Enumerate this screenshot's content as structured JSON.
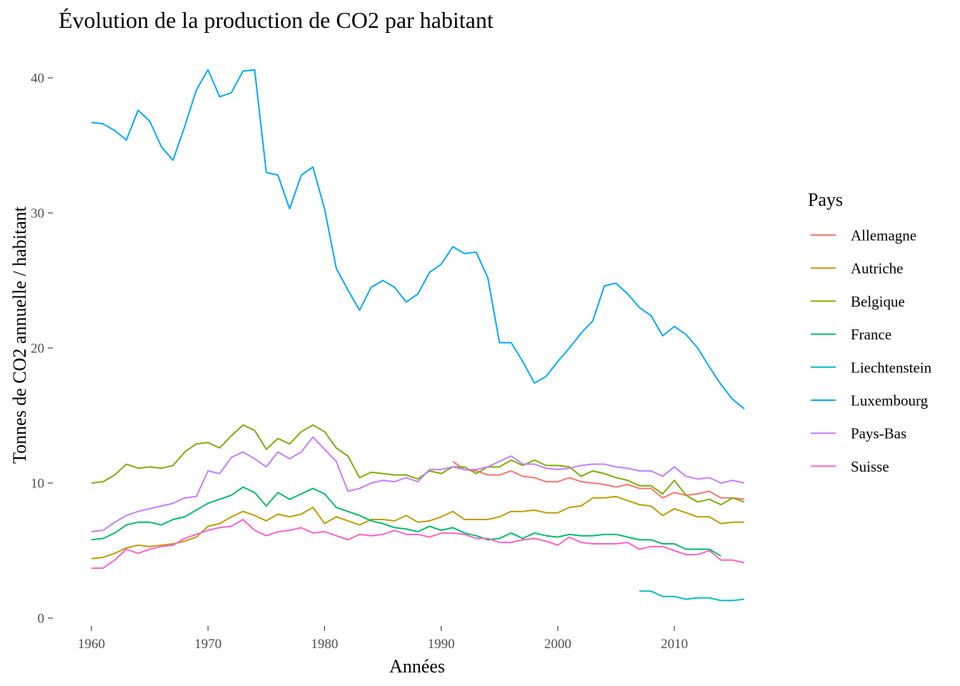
{
  "chart_data": {
    "type": "line",
    "title": "Évolution de la production de CO2 par habitant",
    "xlabel": "Années",
    "ylabel": "Tonnes de CO2 annuelle / habitant",
    "xlim": [
      1960,
      2016
    ],
    "ylim": [
      0,
      41
    ],
    "x_ticks": [
      1960,
      1970,
      1980,
      1990,
      2000,
      2010
    ],
    "y_ticks": [
      0,
      10,
      20,
      30,
      40
    ],
    "grid": false,
    "legend": {
      "title": "Pays",
      "position": "right"
    },
    "series": [
      {
        "name": "Allemagne",
        "color": "#F8766D",
        "x": [
          1991,
          1992,
          1993,
          1994,
          1995,
          1996,
          1997,
          1998,
          1999,
          2000,
          2001,
          2002,
          2003,
          2004,
          2005,
          2006,
          2007,
          2008,
          2009,
          2010,
          2011,
          2012,
          2013,
          2014,
          2015,
          2016
        ],
        "values": [
          11.6,
          11.0,
          10.9,
          10.6,
          10.6,
          10.9,
          10.5,
          10.4,
          10.1,
          10.1,
          10.4,
          10.1,
          10.0,
          9.9,
          9.7,
          9.9,
          9.6,
          9.6,
          8.9,
          9.3,
          9.1,
          9.2,
          9.4,
          8.9,
          8.9,
          8.8
        ]
      },
      {
        "name": "Autriche",
        "color": "#C49A00",
        "x": [
          1960,
          1961,
          1962,
          1963,
          1964,
          1965,
          1966,
          1967,
          1968,
          1969,
          1970,
          1971,
          1972,
          1973,
          1974,
          1975,
          1976,
          1977,
          1978,
          1979,
          1980,
          1981,
          1982,
          1983,
          1984,
          1985,
          1986,
          1987,
          1988,
          1989,
          1990,
          1991,
          1992,
          1993,
          1994,
          1995,
          1996,
          1997,
          1998,
          1999,
          2000,
          2001,
          2002,
          2003,
          2004,
          2005,
          2006,
          2007,
          2008,
          2009,
          2010,
          2011,
          2012,
          2013,
          2014,
          2015,
          2016
        ],
        "values": [
          4.4,
          4.5,
          4.8,
          5.2,
          5.4,
          5.3,
          5.4,
          5.5,
          5.7,
          6.0,
          6.8,
          7.0,
          7.5,
          7.9,
          7.6,
          7.2,
          7.7,
          7.5,
          7.7,
          8.2,
          7.0,
          7.5,
          7.2,
          6.9,
          7.3,
          7.3,
          7.2,
          7.6,
          7.1,
          7.2,
          7.5,
          7.9,
          7.3,
          7.3,
          7.3,
          7.5,
          7.9,
          7.9,
          8.0,
          7.8,
          7.8,
          8.2,
          8.3,
          8.9,
          8.9,
          9.0,
          8.7,
          8.4,
          8.3,
          7.6,
          8.1,
          7.8,
          7.5,
          7.5,
          7.0,
          7.1,
          7.1
        ]
      },
      {
        "name": "Belgique",
        "color": "#7CAE00",
        "x": [
          1960,
          1961,
          1962,
          1963,
          1964,
          1965,
          1966,
          1967,
          1968,
          1969,
          1970,
          1971,
          1972,
          1973,
          1974,
          1975,
          1976,
          1977,
          1978,
          1979,
          1980,
          1981,
          1982,
          1983,
          1984,
          1985,
          1986,
          1987,
          1988,
          1989,
          1990,
          1991,
          1992,
          1993,
          1994,
          1995,
          1996,
          1997,
          1998,
          1999,
          2000,
          2001,
          2002,
          2003,
          2004,
          2005,
          2006,
          2007,
          2008,
          2009,
          2010,
          2011,
          2012,
          2013,
          2014,
          2015,
          2016
        ],
        "values": [
          10.0,
          10.1,
          10.6,
          11.4,
          11.1,
          11.2,
          11.1,
          11.3,
          12.3,
          12.9,
          13.0,
          12.6,
          13.5,
          14.3,
          13.9,
          12.5,
          13.3,
          12.9,
          13.8,
          14.3,
          13.8,
          12.6,
          12.0,
          10.4,
          10.8,
          10.7,
          10.6,
          10.6,
          10.3,
          10.9,
          10.7,
          11.2,
          11.2,
          10.7,
          11.2,
          11.2,
          11.7,
          11.3,
          11.7,
          11.3,
          11.3,
          11.2,
          10.5,
          10.9,
          10.7,
          10.4,
          10.2,
          9.8,
          9.8,
          9.2,
          10.2,
          9.1,
          8.6,
          8.8,
          8.4,
          8.9,
          8.6
        ]
      },
      {
        "name": "France",
        "color": "#00BE67",
        "x": [
          1960,
          1961,
          1962,
          1963,
          1964,
          1965,
          1966,
          1967,
          1968,
          1969,
          1970,
          1971,
          1972,
          1973,
          1974,
          1975,
          1976,
          1977,
          1978,
          1979,
          1980,
          1981,
          1982,
          1983,
          1984,
          1985,
          1986,
          1987,
          1988,
          1989,
          1990,
          1991,
          1992,
          1993,
          1994,
          1995,
          1996,
          1997,
          1998,
          1999,
          2000,
          2001,
          2002,
          2003,
          2004,
          2005,
          2006,
          2007,
          2008,
          2009,
          2010,
          2011,
          2012,
          2013,
          2014
        ],
        "values": [
          5.8,
          5.9,
          6.3,
          6.9,
          7.1,
          7.1,
          6.9,
          7.3,
          7.5,
          8.0,
          8.5,
          8.8,
          9.1,
          9.7,
          9.3,
          8.3,
          9.3,
          8.8,
          9.2,
          9.6,
          9.2,
          8.2,
          7.9,
          7.6,
          7.2,
          7.0,
          6.7,
          6.6,
          6.4,
          6.8,
          6.5,
          6.7,
          6.3,
          6.1,
          5.8,
          5.9,
          6.3,
          5.9,
          6.3,
          6.1,
          6.0,
          6.2,
          6.1,
          6.1,
          6.2,
          6.2,
          6.0,
          5.8,
          5.8,
          5.5,
          5.5,
          5.1,
          5.1,
          5.1,
          4.6
        ]
      },
      {
        "name": "Liechtenstein",
        "color": "#00BFC4",
        "x": [
          2007,
          2008,
          2009,
          2010,
          2011,
          2012,
          2013,
          2014,
          2015,
          2016
        ],
        "values": [
          2.0,
          2.0,
          1.6,
          1.6,
          1.4,
          1.5,
          1.5,
          1.3,
          1.3,
          1.4
        ]
      },
      {
        "name": "Luxembourg",
        "color": "#00A9FF",
        "x": [
          1960,
          1961,
          1962,
          1963,
          1964,
          1965,
          1966,
          1967,
          1968,
          1969,
          1970,
          1971,
          1972,
          1973,
          1974,
          1975,
          1976,
          1977,
          1978,
          1979,
          1980,
          1981,
          1982,
          1983,
          1984,
          1985,
          1986,
          1987,
          1988,
          1989,
          1990,
          1991,
          1992,
          1993,
          1994,
          1995,
          1996,
          1997,
          1998,
          1999,
          2000,
          2001,
          2002,
          2003,
          2004,
          2005,
          2006,
          2007,
          2008,
          2009,
          2010,
          2011,
          2012,
          2013,
          2014,
          2015,
          2016
        ],
        "values": [
          36.7,
          36.6,
          36.1,
          35.4,
          37.6,
          36.8,
          34.9,
          33.9,
          36.4,
          39.1,
          40.6,
          38.6,
          38.9,
          40.5,
          40.6,
          33.0,
          32.8,
          30.3,
          32.8,
          33.4,
          30.3,
          25.9,
          24.3,
          22.8,
          24.5,
          25.0,
          24.5,
          23.4,
          24.0,
          25.6,
          26.2,
          27.5,
          27.0,
          27.1,
          25.2,
          20.4,
          20.4,
          19.0,
          17.4,
          17.9,
          19.0,
          20.0,
          21.1,
          22.0,
          24.6,
          24.8,
          24.0,
          23.0,
          22.4,
          20.9,
          21.6,
          21.0,
          20.0,
          18.6,
          17.3,
          16.2,
          15.5
        ]
      },
      {
        "name": "Pays-Bas",
        "color": "#C77CFF",
        "x": [
          1960,
          1961,
          1962,
          1963,
          1964,
          1965,
          1966,
          1967,
          1968,
          1969,
          1970,
          1971,
          1972,
          1973,
          1974,
          1975,
          1976,
          1977,
          1978,
          1979,
          1980,
          1981,
          1982,
          1983,
          1984,
          1985,
          1986,
          1987,
          1988,
          1989,
          1990,
          1991,
          1992,
          1993,
          1994,
          1995,
          1996,
          1997,
          1998,
          1999,
          2000,
          2001,
          2002,
          2003,
          2004,
          2005,
          2006,
          2007,
          2008,
          2009,
          2010,
          2011,
          2012,
          2013,
          2014,
          2015,
          2016
        ],
        "values": [
          6.4,
          6.5,
          7.1,
          7.6,
          7.9,
          8.1,
          8.3,
          8.5,
          8.9,
          9.0,
          10.9,
          10.7,
          11.9,
          12.3,
          11.8,
          11.2,
          12.3,
          11.8,
          12.3,
          13.4,
          12.5,
          11.6,
          9.4,
          9.6,
          10.0,
          10.2,
          10.1,
          10.4,
          10.1,
          11.0,
          11.0,
          11.2,
          11.0,
          11.0,
          11.2,
          11.6,
          12.0,
          11.4,
          11.4,
          11.1,
          11.0,
          11.1,
          11.3,
          11.4,
          11.4,
          11.2,
          11.1,
          10.9,
          10.9,
          10.5,
          11.2,
          10.5,
          10.3,
          10.4,
          10.0,
          10.2,
          10.0
        ]
      },
      {
        "name": "Suisse",
        "color": "#FF61CC",
        "x": [
          1960,
          1961,
          1962,
          1963,
          1964,
          1965,
          1966,
          1967,
          1968,
          1969,
          1970,
          1971,
          1972,
          1973,
          1974,
          1975,
          1976,
          1977,
          1978,
          1979,
          1980,
          1981,
          1982,
          1983,
          1984,
          1985,
          1986,
          1987,
          1988,
          1989,
          1990,
          1991,
          1992,
          1993,
          1994,
          1995,
          1996,
          1997,
          1998,
          1999,
          2000,
          2001,
          2002,
          2003,
          2004,
          2005,
          2006,
          2007,
          2008,
          2009,
          2010,
          2011,
          2012,
          2013,
          2014,
          2015,
          2016
        ],
        "values": [
          3.7,
          3.7,
          4.3,
          5.1,
          4.8,
          5.1,
          5.3,
          5.4,
          5.9,
          6.2,
          6.5,
          6.7,
          6.8,
          7.3,
          6.5,
          6.1,
          6.4,
          6.5,
          6.7,
          6.3,
          6.4,
          6.1,
          5.8,
          6.2,
          6.1,
          6.2,
          6.5,
          6.2,
          6.2,
          6.0,
          6.3,
          6.3,
          6.2,
          5.9,
          5.9,
          5.6,
          5.6,
          5.8,
          5.9,
          5.7,
          5.4,
          6.0,
          5.6,
          5.5,
          5.5,
          5.5,
          5.6,
          5.1,
          5.3,
          5.3,
          5.0,
          4.7,
          4.7,
          5.0,
          4.3,
          4.3,
          4.1
        ]
      }
    ]
  }
}
